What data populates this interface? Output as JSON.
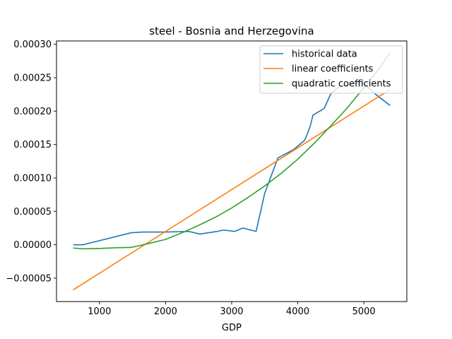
{
  "chart_data": {
    "type": "line",
    "title": "steel - Bosnia and Herzegovina",
    "xlabel": "GDP",
    "ylabel": "",
    "xlim": [
      350,
      5650
    ],
    "ylim": [
      -8.5e-05,
      0.000305
    ],
    "xticks": [
      1000,
      2000,
      3000,
      4000,
      5000
    ],
    "xtick_labels": [
      "1000",
      "2000",
      "3000",
      "4000",
      "5000"
    ],
    "yticks": [
      -5e-05,
      0.0,
      5e-05,
      0.0001,
      0.00015,
      0.0002,
      0.00025,
      0.0003
    ],
    "ytick_labels": [
      "−0.00005",
      "0.00000",
      "0.00005",
      "0.00010",
      "0.00015",
      "0.00020",
      "0.00025",
      "0.00030"
    ],
    "grid": false,
    "legend_position": "top-right",
    "series": [
      {
        "name": "historical data",
        "color": "#1f77b4",
        "x": [
          610,
          750,
          1480,
          1650,
          2000,
          2350,
          2520,
          2780,
          2880,
          3050,
          3170,
          3370,
          3500,
          3700,
          3930,
          4100,
          4130,
          4150,
          4190,
          4230,
          4400,
          4500,
          4620,
          4900,
          5020,
          5180,
          5390
        ],
        "y": [
          0.0,
          0.0,
          1.8e-05,
          1.9e-05,
          1.9e-05,
          2e-05,
          1.6e-05,
          2e-05,
          2.2e-05,
          2e-05,
          2.5e-05,
          2e-05,
          7.7e-05,
          0.00013,
          0.000142,
          0.000156,
          0.000162,
          0.000167,
          0.000178,
          0.000194,
          0.000204,
          0.000226,
          0.000236,
          0.000243,
          0.00024,
          0.000225,
          0.000209
        ]
      },
      {
        "name": "linear coefficients",
        "color": "#ff7f0e",
        "x": [
          610,
          5390
        ],
        "y": [
          -6.7e-05,
          0.000232
        ]
      },
      {
        "name": "quadratic coefficients",
        "color": "#2ca02c",
        "x": [
          610,
          750,
          1000,
          1250,
          1480,
          1750,
          2000,
          2250,
          2500,
          2750,
          3000,
          3250,
          3500,
          3750,
          4000,
          4250,
          4500,
          4750,
          5000,
          5250,
          5390
        ],
        "y": [
          -5e-06,
          -6e-06,
          -5.5e-06,
          -4.5e-06,
          -4e-06,
          2e-06,
          8e-06,
          1.8e-05,
          2.9e-05,
          4.1e-05,
          5.5e-05,
          7.1e-05,
          8.8e-05,
          0.000107,
          0.000128,
          0.000152,
          0.000178,
          0.000205,
          0.000235,
          0.000266,
          0.000287
        ]
      }
    ]
  }
}
